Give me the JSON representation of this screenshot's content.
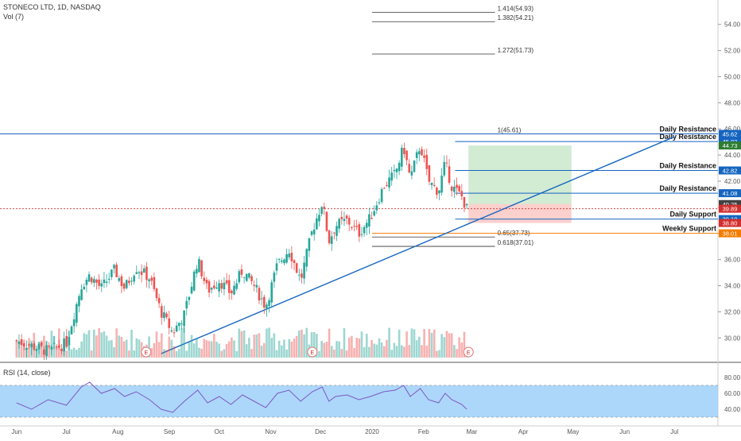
{
  "header": {
    "symbol_line": "STONECO LTD, 1D, NASDAQ",
    "volume_label": "Vol (7)",
    "rsi_label": "RSI (14, close)"
  },
  "chart_data": {
    "type": "candlestick",
    "symbol": "STONECO LTD",
    "interval": "1D",
    "exchange": "NASDAQ",
    "price_axis": {
      "ylim": [
        28.5,
        55.5
      ],
      "ticks": [
        30.0,
        32.0,
        34.0,
        36.0,
        38.0,
        40.0,
        42.0,
        44.0,
        46.0,
        48.0,
        50.0,
        52.0,
        54.0
      ],
      "tick_labels": [
        "30.00",
        "32.00",
        "34.00",
        "36.00",
        "38.00",
        "40.00",
        "42.00",
        "44.00",
        "46.00",
        "48.00",
        "50.00",
        "52.00",
        "54.00"
      ]
    },
    "time_axis": {
      "labels": [
        "Jun",
        "Jul",
        "Aug",
        "Sep",
        "Oct",
        "Nov",
        "Dec",
        "2020",
        "Feb",
        "Mar",
        "Apr",
        "May",
        "Jun",
        "Jul"
      ]
    },
    "close_path": [
      [
        "2019-06-01",
        29.8
      ],
      [
        "2019-06-10",
        29.4
      ],
      [
        "2019-06-20",
        29.0
      ],
      [
        "2019-07-01",
        29.6
      ],
      [
        "2019-07-10",
        34.0
      ],
      [
        "2019-07-15",
        34.8
      ],
      [
        "2019-07-22",
        33.8
      ],
      [
        "2019-07-30",
        35.2
      ],
      [
        "2019-08-05",
        33.8
      ],
      [
        "2019-08-12",
        35.4
      ],
      [
        "2019-08-20",
        34.6
      ],
      [
        "2019-08-27",
        32.0
      ],
      [
        "2019-09-03",
        30.4
      ],
      [
        "2019-09-10",
        31.8
      ],
      [
        "2019-09-18",
        36.0
      ],
      [
        "2019-09-24",
        33.6
      ],
      [
        "2019-10-01",
        34.4
      ],
      [
        "2019-10-08",
        33.4
      ],
      [
        "2019-10-15",
        35.2
      ],
      [
        "2019-10-22",
        34.0
      ],
      [
        "2019-10-29",
        32.4
      ],
      [
        "2019-11-05",
        35.6
      ],
      [
        "2019-11-12",
        36.8
      ],
      [
        "2019-11-19",
        34.4
      ],
      [
        "2019-11-26",
        38.2
      ],
      [
        "2019-12-02",
        40.4
      ],
      [
        "2019-12-06",
        37.4
      ],
      [
        "2019-12-10",
        38.6
      ],
      [
        "2019-12-17",
        39.0
      ],
      [
        "2019-12-24",
        38.0
      ],
      [
        "2019-12-31",
        39.2
      ],
      [
        "2020-01-08",
        41.6
      ],
      [
        "2020-01-15",
        42.6
      ],
      [
        "2020-01-20",
        44.6
      ],
      [
        "2020-01-24",
        42.2
      ],
      [
        "2020-01-30",
        44.8
      ],
      [
        "2020-02-04",
        42.0
      ],
      [
        "2020-02-10",
        41.2
      ],
      [
        "2020-02-14",
        43.4
      ],
      [
        "2020-02-18",
        41.6
      ],
      [
        "2020-02-24",
        40.8
      ],
      [
        "2020-02-27",
        39.89
      ]
    ],
    "horizontal_levels": [
      {
        "label": "Daily Resistance",
        "price": 45.62,
        "price_label": "45.62",
        "color": "#1565c0"
      },
      {
        "label": "Daily Resistance",
        "price": 45.03,
        "price_label": "45.03",
        "color": "#1565c0"
      },
      {
        "label": "Daily Resistance",
        "price": 42.82,
        "price_label": "42.82",
        "color": "#1565c0"
      },
      {
        "label": "Daily Resistance",
        "price": 41.08,
        "price_label": "41.08",
        "color": "#1565c0"
      },
      {
        "label": "Daily Support",
        "price": 39.1,
        "price_label": "39.10",
        "color": "#1565c0"
      },
      {
        "label": "Weekly Support",
        "price": 38.01,
        "price_label": "38.01",
        "color": "#f57c00"
      }
    ],
    "price_badges": [
      {
        "price": 44.73,
        "label": "44.73",
        "color": "#2e7d32"
      },
      {
        "price": 40.25,
        "label": "40.25",
        "color": "#424242"
      },
      {
        "price": 39.89,
        "label": "39.89",
        "color": "#d32f2f"
      },
      {
        "price": 38.8,
        "label": "38.80",
        "color": "#d32f2f"
      }
    ],
    "fibonacci_levels": [
      {
        "label": "1.414(54.93)",
        "price": 54.93
      },
      {
        "label": "1.382(54.21)",
        "price": 54.21
      },
      {
        "label": "1.272(51.73)",
        "price": 51.73
      },
      {
        "label": "1(45.61)",
        "price": 45.61
      },
      {
        "label": "0.65(37.73)",
        "price": 37.73
      },
      {
        "label": "0.618(37.01)",
        "price": 37.01
      }
    ],
    "current_price": 39.89,
    "trade_box": {
      "entry": 40.25,
      "target": 44.73,
      "stop": 38.8
    },
    "trendline": {
      "from": [
        "2019-08-27",
        28.8
      ],
      "to": [
        "2020-07-01",
        45.4
      ]
    },
    "earnings_markers": [
      "E",
      "E",
      "E"
    ],
    "rsi": {
      "axis_ticks": [
        40.0,
        60.0,
        80.0
      ],
      "tick_labels": [
        "40.00",
        "60.00",
        "80.00"
      ],
      "band": [
        30,
        70
      ],
      "ylim": [
        25,
        85
      ],
      "path": [
        [
          "2019-06-01",
          48
        ],
        [
          "2019-06-10",
          40
        ],
        [
          "2019-06-20",
          52
        ],
        [
          "2019-07-01",
          45
        ],
        [
          "2019-07-10",
          68
        ],
        [
          "2019-07-15",
          74
        ],
        [
          "2019-07-22",
          60
        ],
        [
          "2019-07-30",
          66
        ],
        [
          "2019-08-05",
          56
        ],
        [
          "2019-08-12",
          62
        ],
        [
          "2019-08-20",
          52
        ],
        [
          "2019-08-27",
          40
        ],
        [
          "2019-09-03",
          36
        ],
        [
          "2019-09-10",
          50
        ],
        [
          "2019-09-18",
          64
        ],
        [
          "2019-09-24",
          48
        ],
        [
          "2019-10-01",
          56
        ],
        [
          "2019-10-08",
          46
        ],
        [
          "2019-10-15",
          58
        ],
        [
          "2019-10-22",
          50
        ],
        [
          "2019-10-29",
          42
        ],
        [
          "2019-11-05",
          60
        ],
        [
          "2019-11-12",
          64
        ],
        [
          "2019-11-19",
          50
        ],
        [
          "2019-11-26",
          62
        ],
        [
          "2019-12-02",
          68
        ],
        [
          "2019-12-06",
          50
        ],
        [
          "2019-12-10",
          56
        ],
        [
          "2019-12-17",
          58
        ],
        [
          "2019-12-24",
          52
        ],
        [
          "2019-12-31",
          56
        ],
        [
          "2020-01-08",
          62
        ],
        [
          "2020-01-15",
          64
        ],
        [
          "2020-01-20",
          70
        ],
        [
          "2020-01-24",
          56
        ],
        [
          "2020-01-30",
          66
        ],
        [
          "2020-02-04",
          52
        ],
        [
          "2020-02-10",
          48
        ],
        [
          "2020-02-14",
          60
        ],
        [
          "2020-02-18",
          52
        ],
        [
          "2020-02-24",
          46
        ],
        [
          "2020-02-27",
          40
        ]
      ]
    }
  }
}
